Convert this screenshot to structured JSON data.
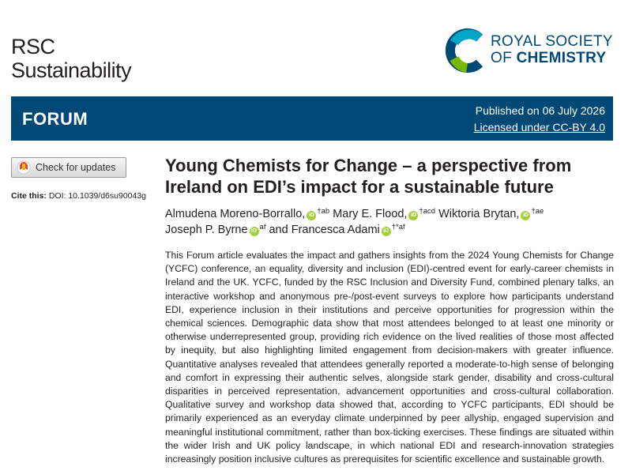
{
  "journal": {
    "line1": "RSC",
    "line2": "Sustainability"
  },
  "publisher": {
    "line1": "ROYAL SOCIETY",
    "line2_prefix": "OF ",
    "line2_bold": "CHEMISTRY",
    "colors": {
      "brand": "#004976",
      "accent": "#00a5c8"
    }
  },
  "banner": {
    "label": "FORUM",
    "published": "Published on 06 July 2026",
    "license": "Licensed under CC-BY 4.0",
    "color": "#004976"
  },
  "check_updates": {
    "label": "Check for updates",
    "icon": "check-updates-icon"
  },
  "cite": {
    "label": "Cite this:",
    "doi": "DOI: 10.1039/d6su90043g"
  },
  "article": {
    "title": "Young Chemists for Change – a perspective from Ireland on EDI’s impact for a sustainable future",
    "authors": [
      {
        "name": "Almudena Moreno-Borrallo,",
        "sup": "†ab"
      },
      {
        "name": "Mary E. Flood,",
        "sup": "†acd"
      },
      {
        "name": "Wiktoria Brytan,",
        "sup": "†ae"
      },
      {
        "name": "Joseph P. Byrne",
        "sup": "af",
        "suffix": " and"
      },
      {
        "name": "Francesca Adami",
        "sup": "†*af"
      }
    ],
    "orcid_icon": "iD",
    "abstract": "This Forum article evaluates the impact and gathers insights from the 2024 Young Chemists for Change (YCFC) conference, an equality, diversity and inclusion (EDI)-centred event for early-career chemists in Ireland and the UK. YCFC, funded by the RSC Inclusion and Diversity Fund, combined plenary talks, an interactive workshop and anonymous pre-/post-event surveys to explore how participants understand EDI, experience inclusion in their institutions and perceive opportunities for progression within the chemical sciences. Demographic data show that most attendees belonged to at least one minority or otherwise underrepresented group, providing rich evidence on the lived realities of those most affected by inequity, but also highlighting limited engagement from decision-makers with greater influence. Quantitative analyses revealed that attendees generally reported a moderate-to-high sense of belonging and comfort in expressing their authentic selves, alongside stark gender, disability and cross-cultural disparities in perceived representation, advancement opportunities and cross-cultural collaboration. Qualitative survey and workshop data showed that, according to YCFC participants, EDI should be primarily experienced as an everyday climate underpinned by peer allyship, engaged supervision and meaningful institutional commitment, rather than box-ticking exercises. These findings are situated within the wider Irish and UK policy landscape, in which national EDI and research-innovation strategies increasingly position inclusive cultures as prerequisites for scientific excellence and sustainable growth."
  }
}
